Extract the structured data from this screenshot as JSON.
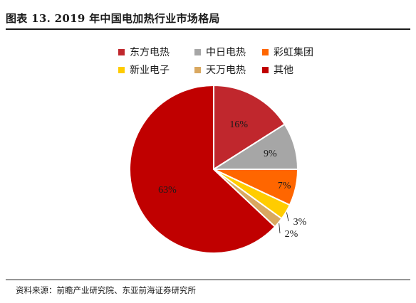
{
  "header": {
    "title": "图表 13. 2019 年中国电加热行业市场格局"
  },
  "source": {
    "label": "资料来源：",
    "text": "前瞻产业研究院、东亚前海证券研究所"
  },
  "chart_data": {
    "type": "pie",
    "title": "",
    "categories": [
      "东方电热",
      "中日电热",
      "彩虹集团",
      "新业电子",
      "天万电热",
      "其他"
    ],
    "values": [
      16,
      9,
      7,
      3,
      2,
      63
    ],
    "labels": [
      "16%",
      "9%",
      "7%",
      "3%",
      "2%",
      "63%"
    ],
    "colors": [
      "#c0272d",
      "#a6a6a6",
      "#ff6600",
      "#ffcc00",
      "#d9a860",
      "#c00000"
    ],
    "legend_position": "top",
    "start_angle": "12 o'clock, clockwise"
  }
}
